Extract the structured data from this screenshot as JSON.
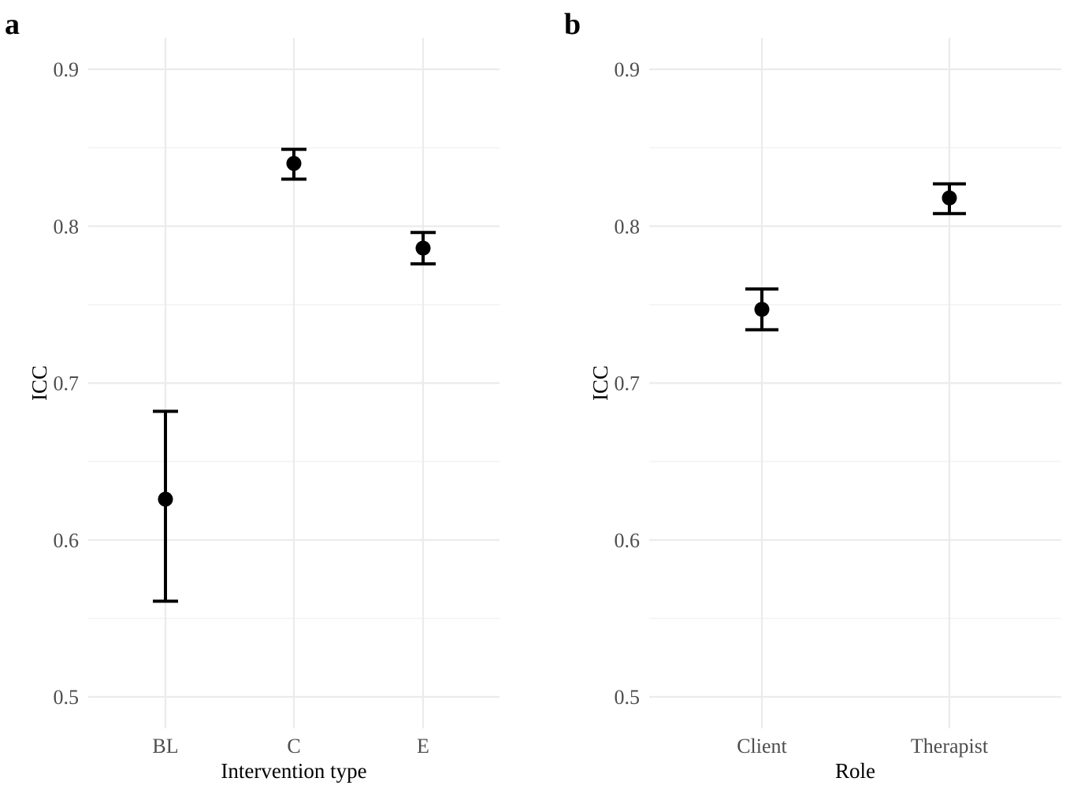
{
  "panels": {
    "a": "a",
    "b": "b"
  },
  "chart_data": [
    {
      "type": "scatter",
      "panel": "a",
      "xlabel": "Intervention type",
      "ylabel": "ICC",
      "categories": [
        "BL",
        "C",
        "E"
      ],
      "values": [
        0.626,
        0.84,
        0.786
      ],
      "lower": [
        0.561,
        0.83,
        0.776
      ],
      "upper": [
        0.682,
        0.849,
        0.796
      ],
      "ylim": [
        0.48,
        0.92
      ],
      "yticks": [
        0.5,
        0.6,
        0.7,
        0.8,
        0.9
      ],
      "ytick_labels": [
        "0.5",
        "0.6",
        "0.7",
        "0.8",
        "0.9"
      ],
      "grid": true
    },
    {
      "type": "scatter",
      "panel": "b",
      "xlabel": "Role",
      "ylabel": "ICC",
      "categories": [
        "Client",
        "Therapist"
      ],
      "values": [
        0.747,
        0.818
      ],
      "lower": [
        0.734,
        0.808
      ],
      "upper": [
        0.76,
        0.827
      ],
      "ylim": [
        0.48,
        0.92
      ],
      "yticks": [
        0.5,
        0.6,
        0.7,
        0.8,
        0.9
      ],
      "ytick_labels": [
        "0.5",
        "0.6",
        "0.7",
        "0.8",
        "0.9"
      ],
      "grid": true
    }
  ]
}
